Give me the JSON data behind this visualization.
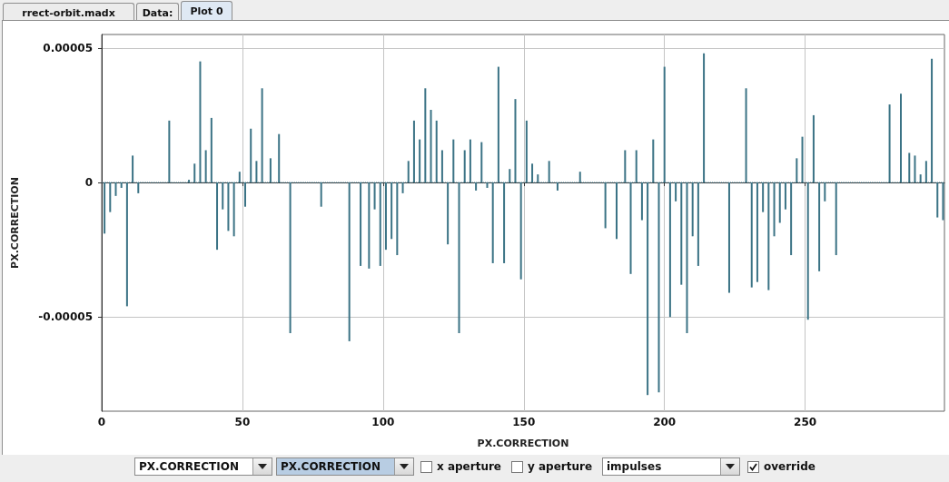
{
  "chart_data": {
    "type": "bar",
    "xlabel": "PX.CORRECTION",
    "ylabel": "PX.CORRECTION",
    "annotations": [
      "rrect-orbit.madx",
      "Data:",
      "Plot 0",
      "PX.CORRECTION",
      "PX.CORRECTION",
      "x aperture",
      "y aperture",
      "impulses",
      "override"
    ],
    "color": "#3b7385",
    "x": [
      1,
      3,
      5,
      7,
      9,
      11,
      13,
      24,
      31,
      33,
      35,
      37,
      39,
      41,
      43,
      45,
      47,
      49,
      51,
      53,
      55,
      57,
      60,
      63,
      67,
      78,
      88,
      92,
      95,
      97,
      99,
      101,
      103,
      105,
      107,
      109,
      111,
      113,
      115,
      117,
      119,
      121,
      123,
      125,
      127,
      129,
      131,
      133,
      135,
      137,
      139,
      141,
      143,
      145,
      147,
      149,
      151,
      153,
      155,
      159,
      162,
      170,
      179,
      183,
      186,
      188,
      190,
      192,
      194,
      196,
      198,
      200,
      202,
      204,
      206,
      208,
      210,
      212,
      214,
      223,
      229,
      231,
      233,
      235,
      237,
      239,
      241,
      243,
      245,
      247,
      249,
      251,
      253,
      255,
      257,
      261,
      280,
      284,
      287,
      289,
      291,
      293,
      295,
      297,
      299
    ],
    "values": [
      -1.9e-05,
      -1.1e-05,
      -5e-06,
      -2e-06,
      -4.6e-05,
      1e-05,
      -4e-06,
      2.3e-05,
      1e-06,
      7e-06,
      4.5e-05,
      1.2e-05,
      2.4e-05,
      -2.5e-05,
      -1e-05,
      -1.8e-05,
      -2e-05,
      4e-06,
      -9e-06,
      2e-05,
      8e-06,
      3.5e-05,
      9e-06,
      1.8e-05,
      -5.6e-05,
      -9e-06,
      -5.9e-05,
      -3.1e-05,
      -3.2e-05,
      -1e-05,
      -3.1e-05,
      -2.5e-05,
      -2.1e-05,
      -2.7e-05,
      -4e-06,
      8e-06,
      2.3e-05,
      1.6e-05,
      3.5e-05,
      2.7e-05,
      2.3e-05,
      1.2e-05,
      -2.3e-05,
      1.6e-05,
      -5.6e-05,
      1.2e-05,
      1.6e-05,
      -3e-06,
      1.5e-05,
      -2e-06,
      -3e-05,
      4.3e-05,
      -3e-05,
      5e-06,
      3.1e-05,
      -3.6e-05,
      2.3e-05,
      7e-06,
      3e-06,
      8e-06,
      -3e-06,
      4e-06,
      -1.7e-05,
      -2.1e-05,
      1.2e-05,
      -3.4e-05,
      1.2e-05,
      -1.4e-05,
      -7.9e-05,
      1.6e-05,
      -7.8e-05,
      4.3e-05,
      -5e-05,
      -7e-06,
      -3.8e-05,
      -5.6e-05,
      -2e-05,
      -3.1e-05,
      4.8e-05,
      -4.1e-05,
      3.5e-05,
      -3.9e-05,
      -3.7e-05,
      -1.1e-05,
      -4e-05,
      -2e-05,
      -1.5e-05,
      -1e-05,
      -2.7e-05,
      9e-06,
      1.7e-05,
      -5.1e-05,
      2.5e-05,
      -3.3e-05,
      -7e-06,
      -2.7e-05,
      2.9e-05,
      3.3e-05,
      1.1e-05,
      1e-05,
      3e-06,
      8e-06,
      4.6e-05,
      -1.3e-05,
      -1.4e-05
    ],
    "xlim": [
      0,
      299.5
    ],
    "xticks": [
      0,
      50,
      100,
      150,
      200,
      250
    ],
    "ylim": [
      -8.5e-05,
      5.5e-05
    ],
    "yticks": [
      {
        "value": -5e-05,
        "label": "-0.00005"
      },
      0,
      {
        "value": 5e-05,
        "label": "0.00005"
      }
    ],
    "ref_lines": [
      {
        "axis": "y",
        "value": 0,
        "color": "#3b7385",
        "line_style": "dotted"
      }
    ],
    "grid": true
  }
}
